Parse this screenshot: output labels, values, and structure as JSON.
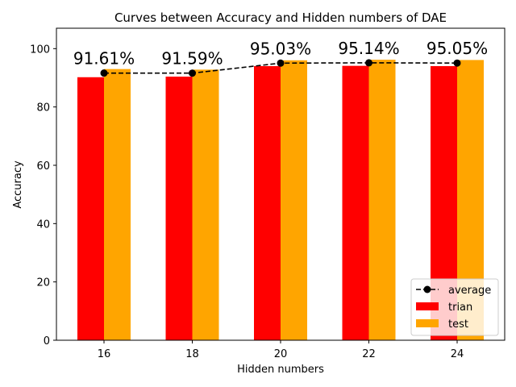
{
  "chart_data": {
    "type": "bar",
    "title": "Curves between Accuracy and Hidden numbers of DAE",
    "xlabel": "Hidden numbers",
    "ylabel": "Accuracy",
    "categories": [
      "16",
      "18",
      "20",
      "22",
      "24"
    ],
    "ylim": [
      0,
      107
    ],
    "yticks": [
      0,
      20,
      40,
      60,
      80,
      100
    ],
    "grid": false,
    "legend_position": "bottom-right",
    "series": [
      {
        "name": "trian",
        "kind": "bar",
        "color": "#ff0000",
        "values": [
          90.2,
          90.4,
          94.0,
          94.1,
          94.0
        ]
      },
      {
        "name": "test",
        "kind": "bar",
        "color": "#ffa500",
        "values": [
          93.0,
          92.8,
          96.0,
          96.2,
          96.1
        ]
      },
      {
        "name": "average",
        "kind": "line",
        "color": "#000000",
        "style": "dashed",
        "marker": "circle",
        "values": [
          91.61,
          91.59,
          95.03,
          95.14,
          95.05
        ]
      }
    ],
    "data_labels": [
      "91.61%",
      "91.59%",
      "95.03%",
      "95.14%",
      "95.05%"
    ]
  }
}
